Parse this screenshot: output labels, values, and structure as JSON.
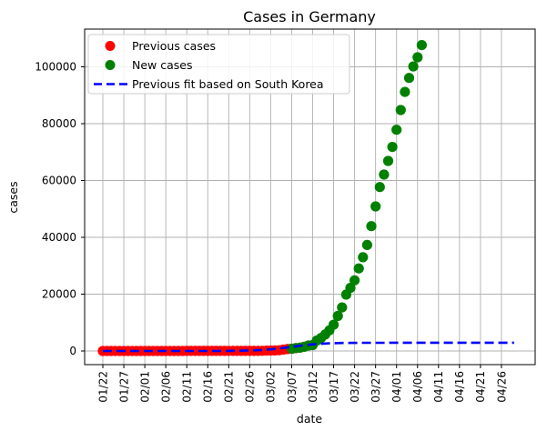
{
  "title": "Cases in Germany",
  "axes": {
    "xlabel": "date",
    "ylabel": "cases",
    "x_tick_labels": [
      "01/22",
      "01/27",
      "02/01",
      "02/06",
      "02/11",
      "02/16",
      "02/21",
      "02/26",
      "03/02",
      "03/07",
      "03/12",
      "03/17",
      "03/22",
      "03/27",
      "04/01",
      "04/06",
      "04/11",
      "04/16",
      "04/21",
      "04/26"
    ],
    "y_tick_labels": [
      "0",
      "20000",
      "40000",
      "60000",
      "80000",
      "100000"
    ],
    "y_tick_values": [
      0,
      20000,
      40000,
      60000,
      80000,
      100000
    ]
  },
  "legend": {
    "position": "upper-left",
    "items": [
      {
        "label": "Previous cases",
        "marker": "dot",
        "color": "#ff0000"
      },
      {
        "label": "New cases",
        "marker": "dot",
        "color": "#008000"
      },
      {
        "label": "Previous fit based on South Korea",
        "marker": "dashed-line",
        "color": "#0000ff"
      }
    ]
  },
  "chart_data": {
    "type": "scatter",
    "title": "Cases in Germany",
    "xlabel": "date",
    "ylabel": "cases",
    "grid": true,
    "ylim": [
      -5000,
      113000
    ],
    "x_range": {
      "first_tick": "01/22",
      "last_tick": "04/26",
      "tick_interval_days": 5
    },
    "legend_position": "upper-left",
    "series": [
      {
        "name": "Previous cases",
        "type": "scatter",
        "color": "#ff0000",
        "start_date": "01/22",
        "frequency": "daily",
        "values": [
          0,
          0,
          0,
          0,
          0,
          1,
          4,
          4,
          4,
          5,
          8,
          10,
          12,
          12,
          12,
          12,
          13,
          13,
          14,
          14,
          16,
          16,
          16,
          16,
          16,
          16,
          16,
          16,
          16,
          16,
          16,
          16,
          16,
          16,
          17,
          27,
          46,
          48,
          79,
          130,
          159,
          196,
          262,
          482,
          670,
          799,
          1040,
          1176
        ]
      },
      {
        "name": "New cases",
        "type": "scatter",
        "color": "#008000",
        "start_date": "03/07",
        "frequency": "daily",
        "values": [
          799,
          1040,
          1176,
          1457,
          1908,
          2078,
          3675,
          4585,
          5795,
          7272,
          9257,
          12327,
          15320,
          19848,
          22213,
          24873,
          29056,
          32986,
          37323,
          43938,
          50871,
          57695,
          62095,
          66885,
          71808,
          77872,
          84794,
          91159,
          96092,
          100123,
          103374,
          107663
        ]
      },
      {
        "name": "Previous fit based on South Korea",
        "type": "line",
        "style": "dashed",
        "color": "#0000ff",
        "model": "logistic",
        "plateau_cases": 2900,
        "growth_rate": 0.28,
        "midpoint_date": "03/07",
        "start_date": "01/22",
        "end_date": "04/29"
      }
    ]
  }
}
